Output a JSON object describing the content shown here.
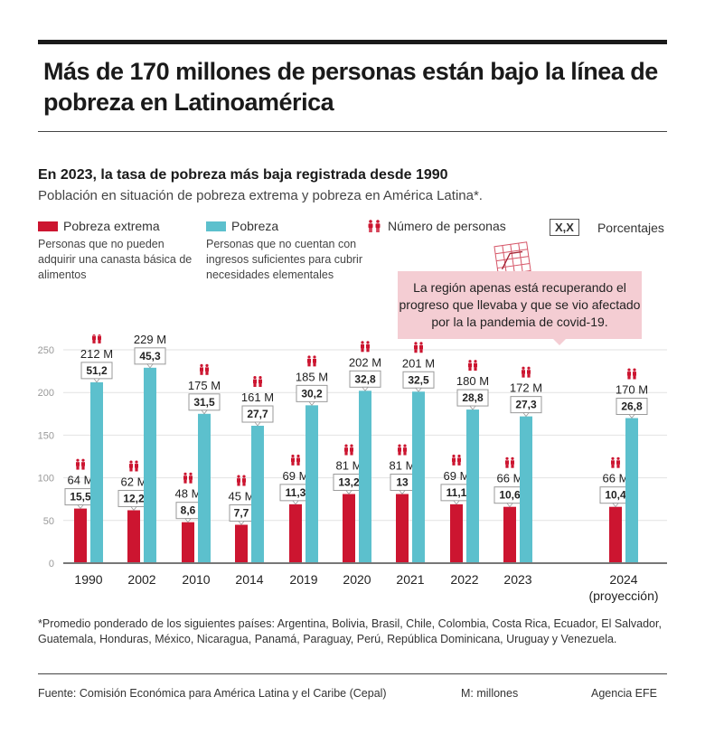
{
  "title": "Más de 170 millones de personas están bajo la línea de pobreza en Latinoamérica",
  "subtitle": "En 2023, la tasa de pobreza más baja registrada desde 1990",
  "subtitle2": "Población en situación de pobreza extrema y pobreza en América Latina*.",
  "legend": {
    "extreme": {
      "label": "Pobreza extrema",
      "desc": "Personas que no pueden adquirir una canasta básica de alimentos",
      "color": "#cc1530"
    },
    "poverty": {
      "label": "Pobreza",
      "desc": "Personas que no cuentan con ingresos suficientes para cubrir necesidades elementales",
      "color": "#5cc0cd"
    },
    "people": {
      "label": "Número de personas",
      "icon": "people-icon"
    },
    "percent": {
      "box": "X,X",
      "label": "Porcentajes"
    }
  },
  "callout": "La región apenas está recuperando el progreso que llevaba y que se vio afectado por la la pandemia de covid-19.",
  "chart_data": {
    "type": "bar",
    "categories": [
      "1990",
      "2002",
      "2010",
      "2014",
      "2019",
      "2020",
      "2021",
      "2022",
      "2023",
      "2024"
    ],
    "category_sublabels": {
      "2024": "(proyección)"
    },
    "ylim": [
      0,
      250
    ],
    "yticks": [
      0,
      50,
      100,
      150,
      200,
      250
    ],
    "grid": true,
    "series": [
      {
        "name": "Pobreza extrema",
        "color": "#cc1530",
        "values": [
          64,
          62,
          48,
          45,
          69,
          81,
          81,
          69,
          66,
          66
        ],
        "labels": [
          "64 M",
          "62 M",
          "48 M",
          "45 M",
          "69 M",
          "81 M",
          "81 M",
          "69 M",
          "66 M",
          "66 M"
        ],
        "percent": [
          "15,5",
          "12,2",
          "8,6",
          "7,7",
          "11,3",
          "13,2",
          "13",
          "11,1",
          "10,6",
          "10,4"
        ]
      },
      {
        "name": "Pobreza",
        "color": "#5cc0cd",
        "values": [
          212,
          229,
          175,
          161,
          185,
          202,
          201,
          180,
          172,
          170
        ],
        "labels": [
          "212 M",
          "229 M",
          "175 M",
          "161 M",
          "185 M",
          "202 M",
          "201 M",
          "180 M",
          "172 M",
          "170 M"
        ],
        "percent": [
          "51,2",
          "45,3",
          "31,5",
          "27,7",
          "30,2",
          "32,8",
          "32,5",
          "28,8",
          "27,3",
          "26,8"
        ]
      }
    ]
  },
  "footnote": "*Promedio ponderado de los siguientes países: Argentina, Bolivia, Brasil, Chile, Colombia, Costa Rica, Ecuador, El Salvador, Guatemala, Honduras, México, Nicaragua, Panamá, Paraguay, Perú, República Dominicana, Uruguay y Venezuela.",
  "footer": {
    "source": "Fuente: Comisión Económica para América Latina y el Caribe (Cepal)",
    "units": "M: millones",
    "agency": "Agencia EFE"
  }
}
